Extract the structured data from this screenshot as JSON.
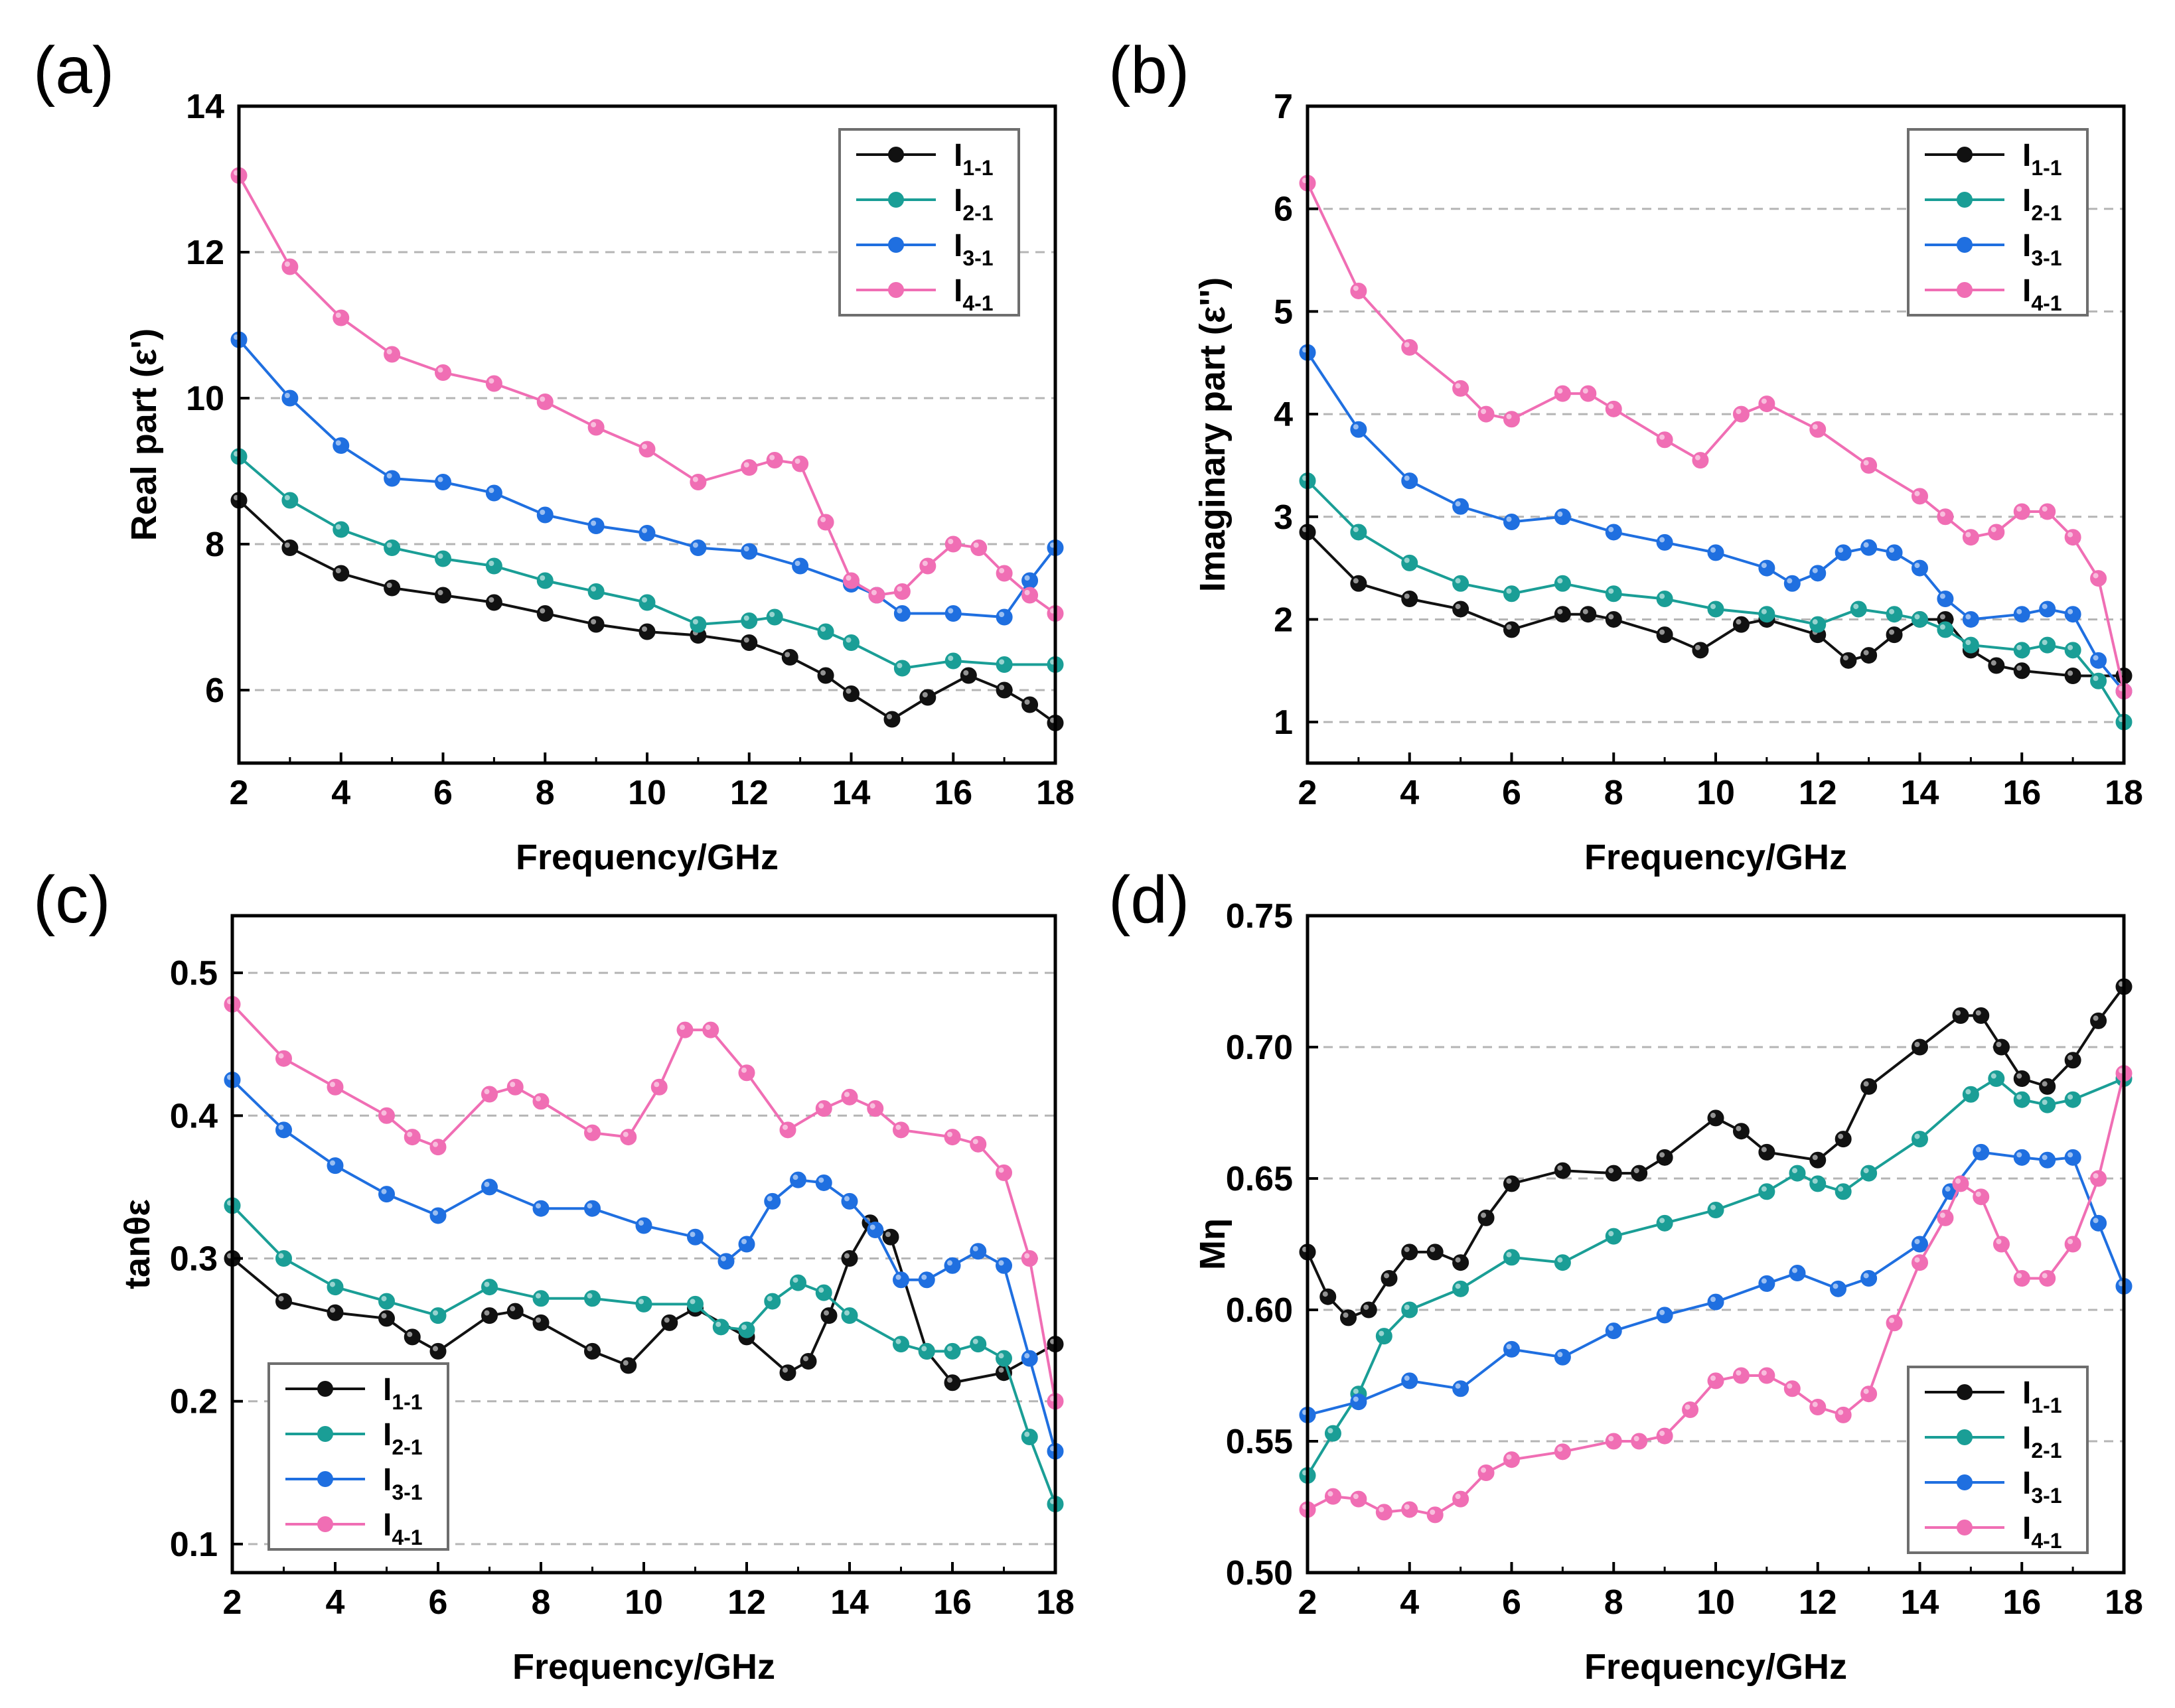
{
  "colors": {
    "I1-1": "#111111",
    "I2-1": "#1a9e96",
    "I3-1": "#1f6fe0",
    "I4-1": "#f06eb4",
    "grid": "#b5b5b5"
  },
  "chart_data": [
    {
      "panel": "(a)",
      "type": "line",
      "xlabel": "Frequency/GHz",
      "ylabel": "Real part (ε')",
      "xlim": [
        2,
        18
      ],
      "ylim": [
        5,
        14
      ],
      "xticks": [
        "2",
        "4",
        "6",
        "8",
        "10",
        "12",
        "14",
        "16",
        "18"
      ],
      "yticks": [
        "6",
        "8",
        "10",
        "12",
        "14"
      ],
      "grid_y": [
        6,
        8,
        10,
        12
      ],
      "legend_position": "top-right",
      "series": [
        {
          "name": "I",
          "sub": "1-1",
          "key": "I1-1",
          "x": [
            2,
            3,
            4,
            5,
            6,
            7,
            8,
            9,
            10,
            11,
            12,
            12.8,
            13.5,
            14,
            14.8,
            15.5,
            16.3,
            17,
            17.5,
            18
          ],
          "y": [
            8.6,
            7.95,
            7.6,
            7.4,
            7.3,
            7.2,
            7.05,
            6.9,
            6.8,
            6.75,
            6.65,
            6.45,
            6.2,
            5.95,
            5.6,
            5.9,
            6.2,
            6.0,
            5.8,
            5.55
          ]
        },
        {
          "name": "I",
          "sub": "2-1",
          "key": "I2-1",
          "x": [
            2,
            3,
            4,
            5,
            6,
            7,
            8,
            9,
            10,
            11,
            12,
            12.5,
            13.5,
            14,
            15,
            16,
            17,
            18
          ],
          "y": [
            9.2,
            8.6,
            8.2,
            7.95,
            7.8,
            7.7,
            7.5,
            7.35,
            7.2,
            6.9,
            6.95,
            7.0,
            6.8,
            6.65,
            6.3,
            6.4,
            6.35,
            6.35
          ]
        },
        {
          "name": "I",
          "sub": "3-1",
          "key": "I3-1",
          "x": [
            2,
            3,
            4,
            5,
            6,
            7,
            8,
            9,
            10,
            11,
            12,
            13,
            14,
            14.5,
            15,
            16,
            17,
            17.5,
            18
          ],
          "y": [
            10.8,
            10.0,
            9.35,
            8.9,
            8.85,
            8.7,
            8.4,
            8.25,
            8.15,
            7.95,
            7.9,
            7.7,
            7.45,
            7.3,
            7.05,
            7.05,
            7.0,
            7.5,
            7.95
          ]
        },
        {
          "name": "I",
          "sub": "4-1",
          "key": "I4-1",
          "x": [
            2,
            3,
            4,
            5,
            6,
            7,
            8,
            9,
            10,
            11,
            12,
            12.5,
            13,
            13.5,
            14,
            14.5,
            15,
            15.5,
            16,
            16.5,
            17,
            17.5,
            18
          ],
          "y": [
            13.05,
            11.8,
            11.1,
            10.6,
            10.35,
            10.2,
            9.95,
            9.6,
            9.3,
            8.85,
            9.05,
            9.15,
            9.1,
            8.3,
            7.5,
            7.3,
            7.35,
            7.7,
            8.0,
            7.95,
            7.6,
            7.3,
            7.05
          ]
        }
      ]
    },
    {
      "panel": "(b)",
      "type": "line",
      "xlabel": "Frequency/GHz",
      "ylabel": "Imaginary part (ε'')",
      "xlim": [
        2,
        18
      ],
      "ylim": [
        0.6,
        7
      ],
      "xticks": [
        "2",
        "4",
        "6",
        "8",
        "10",
        "12",
        "14",
        "16",
        "18"
      ],
      "yticks": [
        "1",
        "2",
        "3",
        "4",
        "5",
        "6",
        "7"
      ],
      "grid_y": [
        1,
        2,
        3,
        4,
        5,
        6
      ],
      "legend_position": "top-right",
      "series": [
        {
          "name": "I",
          "sub": "1-1",
          "key": "I1-1",
          "x": [
            2,
            3,
            4,
            5,
            6,
            7,
            7.5,
            8,
            9,
            9.7,
            10.5,
            11,
            12,
            12.6,
            13,
            13.5,
            14,
            14.5,
            15,
            15.5,
            16,
            17,
            18
          ],
          "y": [
            2.85,
            2.35,
            2.2,
            2.1,
            1.9,
            2.05,
            2.05,
            2.0,
            1.85,
            1.7,
            1.95,
            2.0,
            1.85,
            1.6,
            1.65,
            1.85,
            2.0,
            2.0,
            1.7,
            1.55,
            1.5,
            1.45,
            1.45
          ]
        },
        {
          "name": "I",
          "sub": "2-1",
          "key": "I2-1",
          "x": [
            2,
            3,
            4,
            5,
            6,
            7,
            8,
            9,
            10,
            11,
            12,
            12.8,
            13.5,
            14,
            14.5,
            15,
            16,
            16.5,
            17,
            17.5,
            18
          ],
          "y": [
            3.35,
            2.85,
            2.55,
            2.35,
            2.25,
            2.35,
            2.25,
            2.2,
            2.1,
            2.05,
            1.95,
            2.1,
            2.05,
            2.0,
            1.9,
            1.75,
            1.7,
            1.75,
            1.7,
            1.4,
            1.0
          ]
        },
        {
          "name": "I",
          "sub": "3-1",
          "key": "I3-1",
          "x": [
            2,
            3,
            4,
            5,
            6,
            7,
            8,
            9,
            10,
            11,
            11.5,
            12,
            12.5,
            13,
            13.5,
            14,
            14.5,
            15,
            16,
            16.5,
            17,
            17.5,
            18
          ],
          "y": [
            4.6,
            3.85,
            3.35,
            3.1,
            2.95,
            3.0,
            2.85,
            2.75,
            2.65,
            2.5,
            2.35,
            2.45,
            2.65,
            2.7,
            2.65,
            2.5,
            2.2,
            2.0,
            2.05,
            2.1,
            2.05,
            1.6,
            1.3
          ]
        },
        {
          "name": "I",
          "sub": "4-1",
          "key": "I4-1",
          "x": [
            2,
            3,
            4,
            5,
            5.5,
            6,
            7,
            7.5,
            8,
            9,
            9.7,
            10.5,
            11,
            12,
            13,
            14,
            14.5,
            15,
            15.5,
            16,
            16.5,
            17,
            17.5,
            18
          ],
          "y": [
            6.25,
            5.2,
            4.65,
            4.25,
            4.0,
            3.95,
            4.2,
            4.2,
            4.05,
            3.75,
            3.55,
            4.0,
            4.1,
            3.85,
            3.5,
            3.2,
            3.0,
            2.8,
            2.85,
            3.05,
            3.05,
            2.8,
            2.4,
            1.3
          ]
        }
      ]
    },
    {
      "panel": "(c)",
      "type": "line",
      "xlabel": "Frequency/GHz",
      "ylabel": "tanθε",
      "xlim": [
        2,
        18
      ],
      "ylim": [
        0.08,
        0.54
      ],
      "xticks": [
        "2",
        "4",
        "6",
        "8",
        "10",
        "12",
        "14",
        "16",
        "18"
      ],
      "yticks": [
        "0.1",
        "0.2",
        "0.3",
        "0.4",
        "0.5"
      ],
      "grid_y": [
        0.1,
        0.2,
        0.3,
        0.4,
        0.5
      ],
      "legend_position": "bottom-left",
      "series": [
        {
          "name": "I",
          "sub": "1-1",
          "key": "I1-1",
          "x": [
            2,
            3,
            4,
            5,
            5.5,
            6,
            7,
            7.5,
            8,
            9,
            9.7,
            10.5,
            11,
            12,
            12.8,
            13.2,
            13.6,
            14,
            14.4,
            14.8,
            15.5,
            16,
            17,
            18
          ],
          "y": [
            0.3,
            0.27,
            0.262,
            0.258,
            0.245,
            0.235,
            0.26,
            0.263,
            0.255,
            0.235,
            0.225,
            0.255,
            0.265,
            0.245,
            0.22,
            0.228,
            0.26,
            0.3,
            0.325,
            0.315,
            0.235,
            0.213,
            0.22,
            0.24
          ]
        },
        {
          "name": "I",
          "sub": "2-1",
          "key": "I2-1",
          "x": [
            2,
            3,
            4,
            5,
            6,
            7,
            8,
            9,
            10,
            11,
            11.5,
            12,
            12.5,
            13,
            13.5,
            14,
            15,
            15.5,
            16,
            16.5,
            17,
            17.5,
            18
          ],
          "y": [
            0.337,
            0.3,
            0.28,
            0.27,
            0.26,
            0.28,
            0.272,
            0.272,
            0.268,
            0.268,
            0.252,
            0.25,
            0.27,
            0.283,
            0.276,
            0.26,
            0.24,
            0.235,
            0.235,
            0.24,
            0.23,
            0.175,
            0.128
          ]
        },
        {
          "name": "I",
          "sub": "3-1",
          "key": "I3-1",
          "x": [
            2,
            3,
            4,
            5,
            6,
            7,
            8,
            9,
            10,
            11,
            11.6,
            12,
            12.5,
            13,
            13.5,
            14,
            14.5,
            15,
            15.5,
            16,
            16.5,
            17,
            17.5,
            18
          ],
          "y": [
            0.425,
            0.39,
            0.365,
            0.345,
            0.33,
            0.35,
            0.335,
            0.335,
            0.323,
            0.315,
            0.298,
            0.31,
            0.34,
            0.355,
            0.353,
            0.34,
            0.32,
            0.285,
            0.285,
            0.295,
            0.305,
            0.295,
            0.23,
            0.165
          ]
        },
        {
          "name": "I",
          "sub": "4-1",
          "key": "I4-1",
          "x": [
            2,
            3,
            4,
            5,
            5.5,
            6,
            7,
            7.5,
            8,
            9,
            9.7,
            10.3,
            10.8,
            11.3,
            12,
            12.8,
            13.5,
            14,
            14.5,
            15,
            16,
            16.5,
            17,
            17.5,
            18
          ],
          "y": [
            0.478,
            0.44,
            0.42,
            0.4,
            0.385,
            0.378,
            0.415,
            0.42,
            0.41,
            0.388,
            0.385,
            0.42,
            0.46,
            0.46,
            0.43,
            0.39,
            0.405,
            0.413,
            0.405,
            0.39,
            0.385,
            0.38,
            0.36,
            0.3,
            0.2
          ]
        }
      ]
    },
    {
      "panel": "(d)",
      "type": "line",
      "xlabel": "Frequency/GHz",
      "ylabel": "Mη",
      "xlim": [
        2,
        18
      ],
      "ylim": [
        0.5,
        0.75
      ],
      "xticks": [
        "2",
        "4",
        "6",
        "8",
        "10",
        "12",
        "14",
        "16",
        "18"
      ],
      "yticks": [
        "0.50",
        "0.55",
        "0.60",
        "0.65",
        "0.70",
        "0.75"
      ],
      "grid_y": [
        0.55,
        0.6,
        0.65,
        0.7
      ],
      "legend_position": "bottom-right",
      "series": [
        {
          "name": "I",
          "sub": "1-1",
          "key": "I1-1",
          "x": [
            2,
            2.4,
            2.8,
            3.2,
            3.6,
            4,
            4.5,
            5,
            5.5,
            6,
            7,
            8,
            8.5,
            9,
            10,
            10.5,
            11,
            12,
            12.5,
            13,
            14,
            14.8,
            15.2,
            15.6,
            16,
            16.5,
            17,
            17.5,
            18
          ],
          "y": [
            0.622,
            0.605,
            0.597,
            0.6,
            0.612,
            0.622,
            0.622,
            0.618,
            0.635,
            0.648,
            0.653,
            0.652,
            0.652,
            0.658,
            0.673,
            0.668,
            0.66,
            0.657,
            0.665,
            0.685,
            0.7,
            0.712,
            0.712,
            0.7,
            0.688,
            0.685,
            0.695,
            0.71,
            0.723
          ]
        },
        {
          "name": "I",
          "sub": "2-1",
          "key": "I2-1",
          "x": [
            2,
            2.5,
            3,
            3.5,
            4,
            5,
            6,
            7,
            8,
            9,
            10,
            11,
            11.6,
            12,
            12.5,
            13,
            14,
            15,
            15.5,
            16,
            16.5,
            17,
            18
          ],
          "y": [
            0.537,
            0.553,
            0.568,
            0.59,
            0.6,
            0.608,
            0.62,
            0.618,
            0.628,
            0.633,
            0.638,
            0.645,
            0.652,
            0.648,
            0.645,
            0.652,
            0.665,
            0.682,
            0.688,
            0.68,
            0.678,
            0.68,
            0.688
          ]
        },
        {
          "name": "I",
          "sub": "3-1",
          "key": "I3-1",
          "x": [
            2,
            3,
            4,
            5,
            6,
            7,
            8,
            9,
            10,
            11,
            11.6,
            12.4,
            13,
            14,
            14.6,
            15.2,
            16,
            16.5,
            17,
            17.5,
            18
          ],
          "y": [
            0.56,
            0.565,
            0.573,
            0.57,
            0.585,
            0.582,
            0.592,
            0.598,
            0.603,
            0.61,
            0.614,
            0.608,
            0.612,
            0.625,
            0.645,
            0.66,
            0.658,
            0.657,
            0.658,
            0.633,
            0.609
          ]
        },
        {
          "name": "I",
          "sub": "4-1",
          "key": "I4-1",
          "x": [
            2,
            2.5,
            3,
            3.5,
            4,
            4.5,
            5,
            5.5,
            6,
            7,
            8,
            8.5,
            9,
            9.5,
            10,
            10.5,
            11,
            11.5,
            12,
            12.5,
            13,
            13.5,
            14,
            14.5,
            14.8,
            15.2,
            15.6,
            16,
            16.5,
            17,
            17.5,
            18
          ],
          "y": [
            0.524,
            0.529,
            0.528,
            0.523,
            0.524,
            0.522,
            0.528,
            0.538,
            0.543,
            0.546,
            0.55,
            0.55,
            0.552,
            0.562,
            0.573,
            0.575,
            0.575,
            0.57,
            0.563,
            0.56,
            0.568,
            0.595,
            0.618,
            0.635,
            0.648,
            0.643,
            0.625,
            0.612,
            0.612,
            0.625,
            0.65,
            0.69
          ]
        }
      ]
    }
  ]
}
